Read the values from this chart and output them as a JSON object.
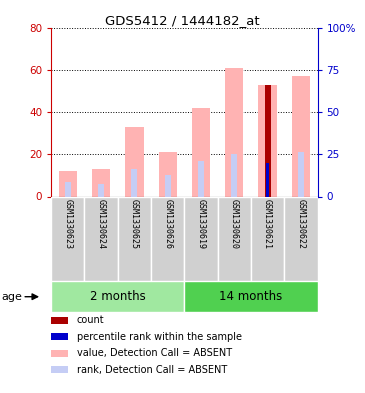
{
  "title": "GDS5412 / 1444182_at",
  "samples": [
    "GSM1330623",
    "GSM1330624",
    "GSM1330625",
    "GSM1330626",
    "GSM1330619",
    "GSM1330620",
    "GSM1330621",
    "GSM1330622"
  ],
  "age_groups": [
    {
      "label": "2 months",
      "start": 0,
      "end": 4
    },
    {
      "label": "14 months",
      "start": 4,
      "end": 8
    }
  ],
  "ylim_left": [
    0,
    80
  ],
  "ylim_right": [
    0,
    100
  ],
  "yticks_left": [
    0,
    20,
    40,
    60,
    80
  ],
  "yticks_right": [
    0,
    25,
    50,
    75,
    100
  ],
  "yticklabels_right": [
    "0",
    "25",
    "50",
    "75",
    "100%"
  ],
  "value_absent": [
    12,
    13,
    33,
    21,
    42,
    61,
    53,
    57
  ],
  "rank_absent": [
    7,
    6,
    13,
    10,
    17,
    20,
    20,
    21
  ],
  "count_value": [
    0,
    0,
    0,
    0,
    0,
    0,
    53,
    0
  ],
  "percentile_rank": [
    0,
    0,
    0,
    0,
    0,
    0,
    20,
    0
  ],
  "color_value_absent": "#ffb3b3",
  "color_rank_absent": "#c5cdf5",
  "color_count": "#aa0000",
  "color_percentile": "#0000cc",
  "color_left_axis": "#cc0000",
  "color_right_axis": "#0000cc",
  "plot_bg": "#ffffff",
  "sample_bg": "#d0d0d0",
  "age_bg_2months": "#a0e8a0",
  "age_bg_14months": "#50d050",
  "legend_items": [
    {
      "label": "count",
      "color": "#aa0000"
    },
    {
      "label": "percentile rank within the sample",
      "color": "#0000cc"
    },
    {
      "label": "value, Detection Call = ABSENT",
      "color": "#ffb3b3"
    },
    {
      "label": "rank, Detection Call = ABSENT",
      "color": "#c5cdf5"
    }
  ]
}
